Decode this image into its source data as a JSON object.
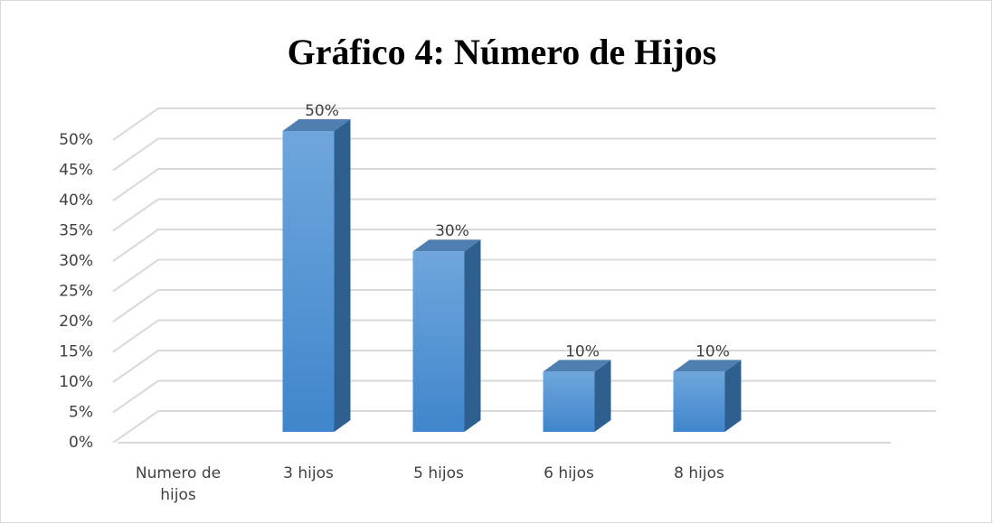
{
  "chart_data": {
    "type": "bar3d",
    "title": "Gráfico 4: Número de Hijos",
    "categories": [
      "Numero de hijos",
      "3 hijos",
      "5 hijos",
      "6 hijos",
      "8 hijos"
    ],
    "values": [
      null,
      50,
      30,
      10,
      10
    ],
    "value_labels": [
      null,
      "50%",
      "30%",
      "10%",
      "10%"
    ],
    "color": "#5b9bd5",
    "ylim": [
      0,
      50
    ],
    "yticks": [
      {
        "value": 0,
        "label": "0%"
      },
      {
        "value": 5,
        "label": "5%"
      },
      {
        "value": 10,
        "label": "10%"
      },
      {
        "value": 15,
        "label": "15%"
      },
      {
        "value": 20,
        "label": "20%"
      },
      {
        "value": 25,
        "label": "25%"
      },
      {
        "value": 30,
        "label": "30%"
      },
      {
        "value": 35,
        "label": "35%"
      },
      {
        "value": 40,
        "label": "40%"
      },
      {
        "value": 45,
        "label": "45%"
      },
      {
        "value": 50,
        "label": "50%"
      }
    ],
    "grid": true
  }
}
